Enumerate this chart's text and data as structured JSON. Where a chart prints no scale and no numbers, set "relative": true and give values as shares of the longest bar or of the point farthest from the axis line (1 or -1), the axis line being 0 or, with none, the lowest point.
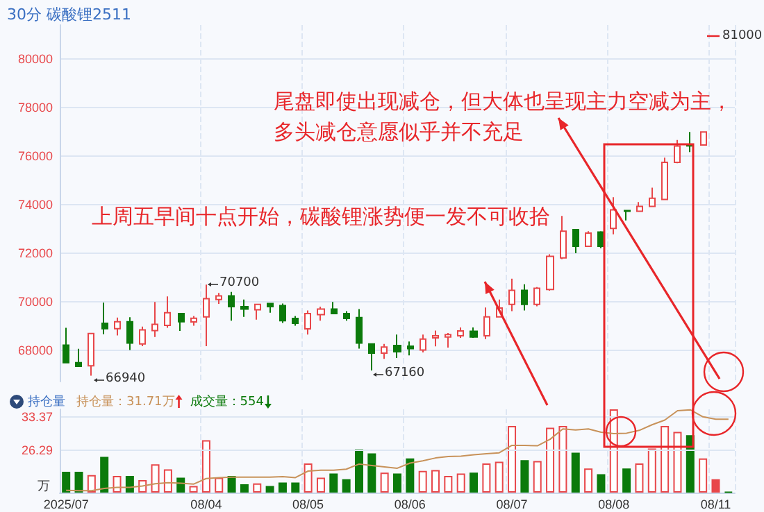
{
  "chart_data": [
    {
      "type": "candlestick",
      "title": "30分 碳酸锂2511",
      "categories": [
        null,
        null,
        null,
        null,
        null,
        null,
        null,
        null,
        null,
        null,
        null,
        null,
        null,
        null,
        null,
        null,
        null,
        null,
        null,
        null,
        null,
        null,
        null,
        null,
        null,
        null,
        null,
        null,
        null,
        null,
        null,
        null,
        null,
        null,
        null,
        null,
        null,
        null,
        null,
        null,
        null,
        null,
        null,
        null,
        null,
        null,
        null,
        null,
        null,
        null,
        null,
        null,
        null
      ],
      "ohlc": [
        [
          68200,
          68920,
          67450,
          67480
        ],
        [
          67480,
          68050,
          67300,
          67330
        ],
        [
          67350,
          68700,
          66940,
          68680
        ],
        [
          69100,
          69950,
          68650,
          68880
        ],
        [
          68880,
          69340,
          68600,
          69170
        ],
        [
          69170,
          69350,
          68000,
          68290
        ],
        [
          68250,
          68970,
          68160,
          68830
        ],
        [
          68800,
          69980,
          68540,
          69060
        ],
        [
          69020,
          70210,
          68920,
          69540
        ],
        [
          69500,
          69500,
          68790,
          69170
        ],
        [
          69160,
          69400,
          69000,
          69310
        ],
        [
          69370,
          70700,
          68160,
          70120
        ],
        [
          70080,
          70350,
          69900,
          70230
        ],
        [
          70230,
          70400,
          69210,
          69790
        ],
        [
          69790,
          70080,
          69370,
          69690
        ],
        [
          69660,
          69880,
          69250,
          69880
        ],
        [
          69920,
          69920,
          69540,
          69790
        ],
        [
          69830,
          69920,
          69120,
          69210
        ],
        [
          69300,
          69400,
          69000,
          69100
        ],
        [
          68870,
          69630,
          68640,
          69500
        ],
        [
          69460,
          69790,
          69210,
          69690
        ],
        [
          69690,
          69980,
          69500,
          69500
        ],
        [
          69500,
          69600,
          69210,
          69300
        ],
        [
          69340,
          69690,
          68060,
          68290
        ],
        [
          68250,
          68250,
          67160,
          67870
        ],
        [
          67870,
          68250,
          67640,
          68120
        ],
        [
          68190,
          68640,
          67670,
          67930
        ],
        [
          68160,
          68350,
          67780,
          68060
        ],
        [
          68000,
          68640,
          67900,
          68450
        ],
        [
          68500,
          68800,
          68150,
          68590
        ],
        [
          68540,
          68700,
          68100,
          68640
        ],
        [
          68590,
          68930,
          68500,
          68790
        ],
        [
          68770,
          68930,
          68500,
          68540
        ],
        [
          68590,
          69750,
          68450,
          69370
        ],
        [
          69370,
          70080,
          69350,
          69730
        ],
        [
          69880,
          70940,
          69600,
          70460
        ],
        [
          70460,
          70710,
          69630,
          69880
        ],
        [
          69880,
          70600,
          69800,
          70550
        ],
        [
          70500,
          71950,
          70450,
          71860
        ],
        [
          71800,
          73530,
          71750,
          72900
        ],
        [
          72960,
          72960,
          71990,
          72280
        ],
        [
          72280,
          72900,
          72250,
          72820
        ],
        [
          72860,
          72900,
          72200,
          72280
        ],
        [
          73010,
          74300,
          72770,
          73780
        ],
        [
          73750,
          73760,
          73340,
          73720
        ],
        [
          73720,
          74100,
          73720,
          73920
        ],
        [
          73920,
          74690,
          73920,
          74260
        ],
        [
          74210,
          75930,
          74210,
          75740
        ],
        [
          75740,
          76660,
          75700,
          76410
        ],
        [
          76460,
          76990,
          76160,
          76420
        ],
        [
          76450,
          77000,
          76450,
          76990
        ],
        null,
        null
      ],
      "colors": [
        "#0b7a0b",
        "#0b7a0b",
        "#e8474a",
        "#0b7a0b",
        "#e8474a",
        "#0b7a0b",
        "#e8474a",
        "#e8474a",
        "#e8474a",
        "#0b7a0b",
        "#e8474a",
        "#e8474a",
        "#e8474a",
        "#0b7a0b",
        "#0b7a0b",
        "#e8474a",
        "#0b7a0b",
        "#0b7a0b",
        "#0b7a0b",
        "#e8474a",
        "#e8474a",
        "#0b7a0b",
        "#0b7a0b",
        "#0b7a0b",
        "#0b7a0b",
        "#e8474a",
        "#0b7a0b",
        "#0b7a0b",
        "#e8474a",
        "#e8474a",
        "#e8474a",
        "#e8474a",
        "#0b7a0b",
        "#e8474a",
        "#e8474a",
        "#e8474a",
        "#0b7a0b",
        "#e8474a",
        "#e8474a",
        "#e8474a",
        "#0b7a0b",
        "#e8474a",
        "#0b7a0b",
        "#e8474a",
        "#0b7a0b",
        "#e8474a",
        "#e8474a",
        "#e8474a",
        "#e8474a",
        "#0b7a0b",
        "#e8474a",
        null,
        null
      ],
      "ylim": [
        66700,
        81400
      ],
      "yticks": [
        68000,
        70000,
        72000,
        74000,
        76000,
        78000,
        80000
      ],
      "grid": true,
      "tick_labels": "y",
      "annotations": [
        "尾盘即使出现减仓，但大体也呈现主力空减为主，",
        "多头减仓意愿似乎并不充足",
        "上周五早间十点开始，碳酸锂涨势便一发不可收拾",
        "81000",
        "70700",
        "66940",
        "67160"
      ]
    },
    {
      "type": "bar",
      "relative": true,
      "categories": [
        "2025/07",
        null,
        null,
        null,
        null,
        null,
        null,
        null,
        null,
        null,
        null,
        "08/04",
        null,
        null,
        null,
        null,
        null,
        null,
        null,
        "08/05",
        null,
        null,
        null,
        null,
        null,
        null,
        null,
        "08/06",
        null,
        null,
        null,
        null,
        null,
        null,
        null,
        "08/07",
        null,
        null,
        null,
        null,
        null,
        null,
        null,
        "08/08",
        null,
        null,
        null,
        null,
        null,
        null,
        null,
        "08/11",
        null
      ],
      "values": [
        0.25,
        0.25,
        0.21,
        0.43,
        0.2,
        0.2,
        0.15,
        0.34,
        0.28,
        0.18,
        0.08,
        0.63,
        0.18,
        0.2,
        0.1,
        0.11,
        0.08,
        0.12,
        0.12,
        0.35,
        0.18,
        0.23,
        0.16,
        0.52,
        0.47,
        0.24,
        0.23,
        0.41,
        0.26,
        0.27,
        0.2,
        0.23,
        0.24,
        0.35,
        0.37,
        0.8,
        0.39,
        0.38,
        0.78,
        0.8,
        0.48,
        0.29,
        0.22,
        1,
        0.29,
        0.35,
        0.53,
        0.8,
        0.73,
        0.69,
        0.41,
        0.16,
        0.01
      ],
      "colors": [
        "#0b7a0b",
        "#0b7a0b",
        "#e8474a",
        "#0b7a0b",
        "#e8474a",
        "#0b7a0b",
        "#e8474a",
        "#e8474a",
        "#e8474a",
        "#0b7a0b",
        "#e8474a",
        "#e8474a",
        "#e8474a",
        "#0b7a0b",
        "#0b7a0b",
        "#e8474a",
        "#0b7a0b",
        "#0b7a0b",
        "#0b7a0b",
        "#e8474a",
        "#e8474a",
        "#0b7a0b",
        "#0b7a0b",
        "#0b7a0b",
        "#0b7a0b",
        "#e8474a",
        "#0b7a0b",
        "#0b7a0b",
        "#e8474a",
        "#e8474a",
        "#e8474a",
        "#e8474a",
        "#0b7a0b",
        "#e8474a",
        "#e8474a",
        "#e8474a",
        "#0b7a0b",
        "#e8474a",
        "#e8474a",
        "#e8474a",
        "#0b7a0b",
        "#e8474a",
        "#0b7a0b",
        "#e8474a",
        "#0b7a0b",
        "#e8474a",
        "#e8474a",
        "#e8474a",
        "#e8474a",
        "#0b7a0b",
        "#e8474a",
        "#e8474a",
        "#0b7a0b"
      ],
      "grid": "x",
      "annotations": [
        "成交量：554"
      ]
    },
    {
      "type": "line",
      "ylabel": "万",
      "tick_labels": "y",
      "categories": [
        null,
        null,
        null,
        null,
        null,
        null,
        null,
        null,
        null,
        null,
        null,
        null,
        null,
        null,
        null,
        null,
        null,
        null,
        null,
        null,
        null,
        null,
        null,
        null,
        null,
        null,
        null,
        null,
        null,
        null,
        null,
        null,
        null,
        null,
        null,
        null,
        null,
        null,
        null,
        null,
        null,
        null,
        null,
        null,
        null,
        null,
        null,
        null,
        null,
        null,
        null,
        null,
        null
      ],
      "series": [
        {
          "name": "持仓量",
          "color": "#c8925a",
          "values": [
            17.7,
            17.6,
            17.6,
            18.1,
            18.3,
            18.3,
            18.6,
            19.1,
            19.3,
            19.2,
            19,
            20.2,
            20.4,
            20.5,
            20.5,
            20.5,
            20.5,
            20.6,
            20.4,
            21.8,
            22,
            22,
            22.2,
            23.3,
            23,
            22.7,
            22.4,
            23.5,
            24,
            24.6,
            24.9,
            25,
            25.3,
            25.5,
            25.7,
            27.3,
            27.3,
            27.2,
            28.6,
            30.8,
            30.6,
            30.8,
            30.1,
            29.8,
            29.9,
            30.5,
            31.7,
            32.7,
            34.7,
            34.9,
            33.4,
            32.9,
            32.9
          ]
        }
      ],
      "ylim": [
        17.2,
        35
      ],
      "yticks": [
        26.29,
        33.37
      ],
      "grid": "y",
      "marker": "none",
      "annotations": [
        "持仓量：31.71万"
      ]
    }
  ]
}
